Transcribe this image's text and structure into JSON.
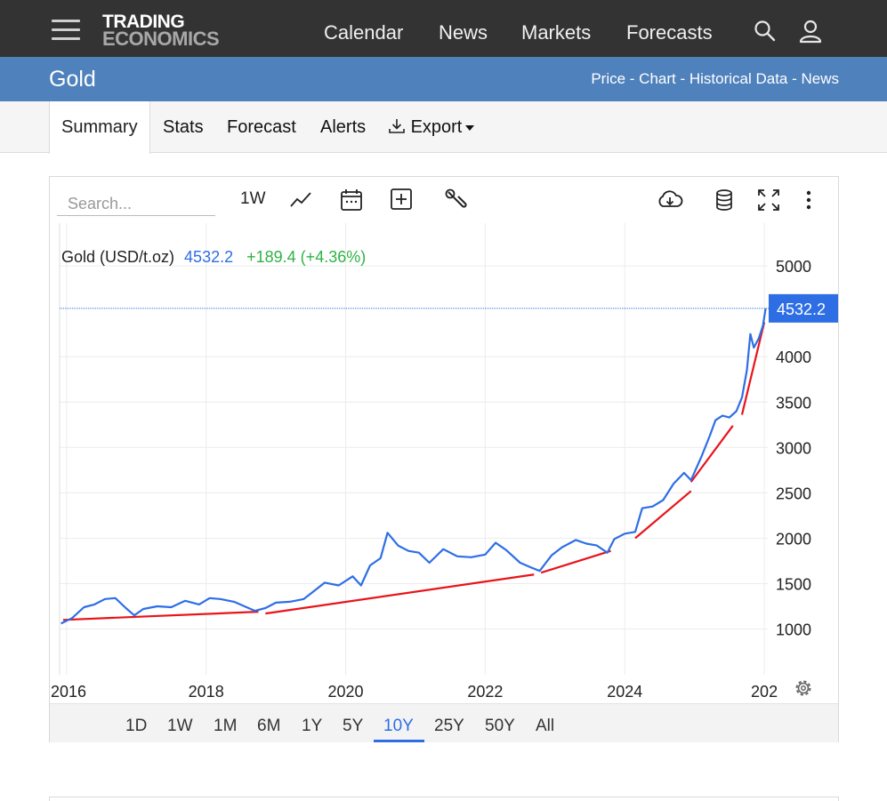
{
  "nav": {
    "logo_line1": "TRADING",
    "logo_line2": "ECONOMICS",
    "links": [
      "Calendar",
      "News",
      "Markets",
      "Forecasts"
    ]
  },
  "titlebar": {
    "title": "Gold",
    "links": "Price - Chart - Historical Data - News"
  },
  "tabs": [
    "Summary",
    "Stats",
    "Forecast",
    "Alerts",
    "Export"
  ],
  "toolbar": {
    "search_placeholder": "Search...",
    "interval": "1W"
  },
  "chart_legend": {
    "name": "Gold (USD/t.oz)",
    "price": "4532.2",
    "change": "+189.4 (+4.36%)",
    "price_tag": "4532.2"
  },
  "ranges": [
    "1D",
    "1W",
    "1M",
    "6M",
    "1Y",
    "5Y",
    "10Y",
    "25Y",
    "50Y",
    "All"
  ],
  "active_range": "10Y",
  "colors": {
    "accent": "#2e6ee5",
    "change_positive": "#2fb344",
    "trendline": "#e8141a",
    "navbar": "#333333",
    "titlebar": "#4f81bd"
  },
  "chart_data": {
    "type": "line",
    "title": "",
    "xlabel": "",
    "ylabel": "",
    "x_ticks": [
      "2016",
      "2018",
      "2020",
      "2022",
      "2024",
      "202"
    ],
    "y_ticks": [
      1000,
      1500,
      2000,
      2500,
      3000,
      3500,
      4000,
      5000
    ],
    "ylim": [
      500,
      5500
    ],
    "xlim": [
      2015.9,
      2026.05
    ],
    "grid": true,
    "series": [
      {
        "name": "Gold (USD/t.oz)",
        "points": [
          [
            2015.92,
            1060
          ],
          [
            2016.08,
            1120
          ],
          [
            2016.25,
            1240
          ],
          [
            2016.4,
            1270
          ],
          [
            2016.55,
            1330
          ],
          [
            2016.7,
            1340
          ],
          [
            2016.85,
            1230
          ],
          [
            2016.97,
            1150
          ],
          [
            2017.1,
            1220
          ],
          [
            2017.3,
            1250
          ],
          [
            2017.5,
            1240
          ],
          [
            2017.7,
            1310
          ],
          [
            2017.9,
            1270
          ],
          [
            2018.05,
            1340
          ],
          [
            2018.2,
            1330
          ],
          [
            2018.4,
            1300
          ],
          [
            2018.55,
            1250
          ],
          [
            2018.7,
            1200
          ],
          [
            2018.85,
            1230
          ],
          [
            2019.0,
            1290
          ],
          [
            2019.2,
            1300
          ],
          [
            2019.4,
            1330
          ],
          [
            2019.55,
            1420
          ],
          [
            2019.7,
            1510
          ],
          [
            2019.9,
            1480
          ],
          [
            2020.1,
            1580
          ],
          [
            2020.22,
            1480
          ],
          [
            2020.35,
            1700
          ],
          [
            2020.5,
            1780
          ],
          [
            2020.6,
            2060
          ],
          [
            2020.75,
            1920
          ],
          [
            2020.9,
            1860
          ],
          [
            2021.05,
            1840
          ],
          [
            2021.2,
            1730
          ],
          [
            2021.4,
            1880
          ],
          [
            2021.6,
            1800
          ],
          [
            2021.8,
            1790
          ],
          [
            2022.0,
            1820
          ],
          [
            2022.15,
            1950
          ],
          [
            2022.3,
            1870
          ],
          [
            2022.5,
            1730
          ],
          [
            2022.65,
            1680
          ],
          [
            2022.78,
            1640
          ],
          [
            2022.95,
            1810
          ],
          [
            2023.1,
            1900
          ],
          [
            2023.3,
            1980
          ],
          [
            2023.45,
            1940
          ],
          [
            2023.6,
            1920
          ],
          [
            2023.75,
            1840
          ],
          [
            2023.85,
            1990
          ],
          [
            2024.0,
            2050
          ],
          [
            2024.15,
            2070
          ],
          [
            2024.25,
            2330
          ],
          [
            2024.4,
            2350
          ],
          [
            2024.55,
            2420
          ],
          [
            2024.7,
            2600
          ],
          [
            2024.85,
            2720
          ],
          [
            2024.95,
            2640
          ],
          [
            2025.1,
            2900
          ],
          [
            2025.22,
            3130
          ],
          [
            2025.3,
            3300
          ],
          [
            2025.4,
            3350
          ],
          [
            2025.5,
            3330
          ],
          [
            2025.6,
            3400
          ],
          [
            2025.68,
            3550
          ],
          [
            2025.75,
            3850
          ],
          [
            2025.8,
            4250
          ],
          [
            2025.85,
            4100
          ],
          [
            2025.92,
            4200
          ],
          [
            2025.98,
            4340
          ],
          [
            2026.02,
            4532.2
          ]
        ]
      }
    ],
    "trendlines": [
      [
        [
          2015.95,
          1100
        ],
        [
          2018.75,
          1190
        ]
      ],
      [
        [
          2018.85,
          1170
        ],
        [
          2022.7,
          1600
        ]
      ],
      [
        [
          2022.8,
          1620
        ],
        [
          2023.8,
          1860
        ]
      ],
      [
        [
          2024.15,
          2000
        ],
        [
          2024.95,
          2520
        ]
      ],
      [
        [
          2024.95,
          2620
        ],
        [
          2025.55,
          3240
        ]
      ],
      [
        [
          2025.68,
          3360
        ],
        [
          2026.0,
          4380
        ]
      ]
    ],
    "last_value": 4532.2
  }
}
